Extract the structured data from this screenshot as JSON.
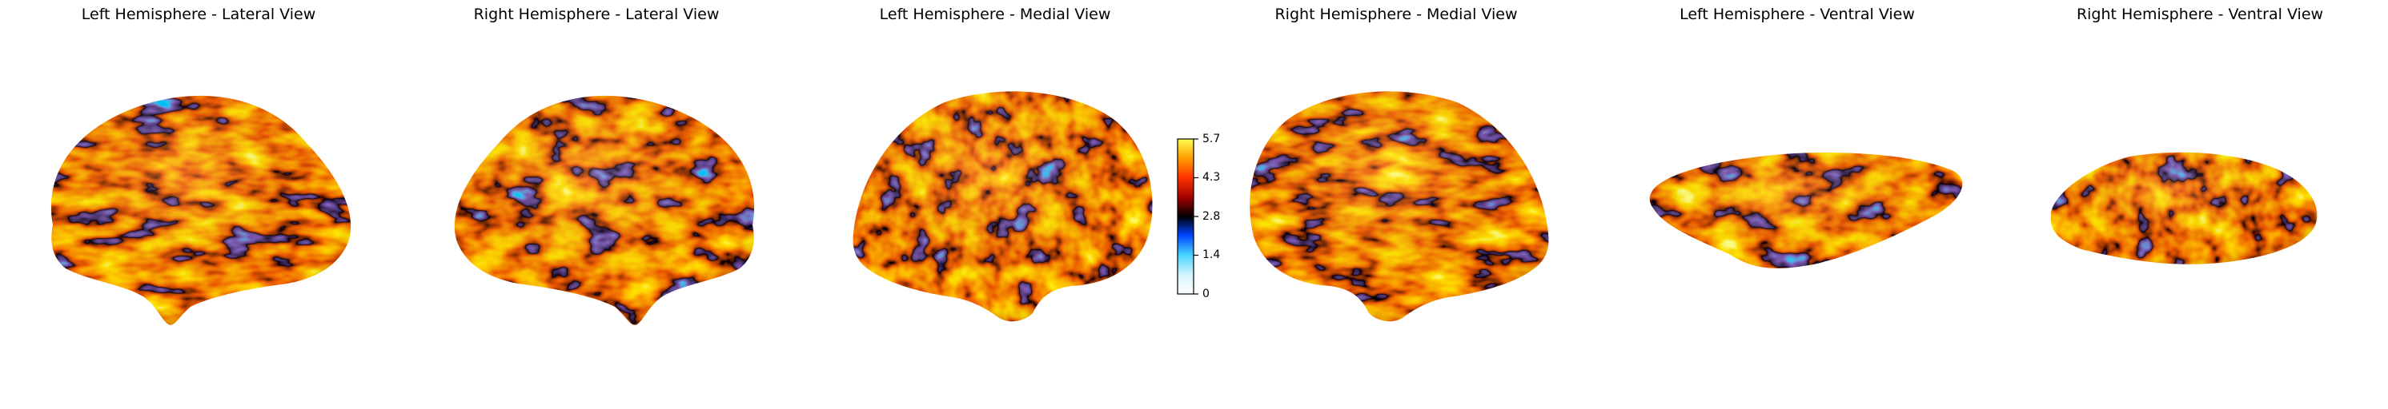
{
  "figure": {
    "panels": [
      {
        "title": "Left Hemisphere - Lateral View"
      },
      {
        "title": "Right Hemisphere - Lateral View"
      },
      {
        "title": "Left Hemisphere - Medial View"
      },
      {
        "title": "Right Hemisphere - Medial View"
      },
      {
        "title": "Left Hemisphere - Ventral View"
      },
      {
        "title": "Right Hemisphere - Ventral View"
      }
    ],
    "colorbar": {
      "colormap": "cold_hot",
      "min": 0,
      "max": 5.7,
      "ticks": [
        "5.7",
        "4.3",
        "2.8",
        "1.4",
        "0"
      ]
    },
    "colors": {
      "low": "#0033ff",
      "mid": "#000000",
      "warm": "#d62800",
      "hot": "#ff8c00",
      "peak": "#ffff40"
    }
  }
}
